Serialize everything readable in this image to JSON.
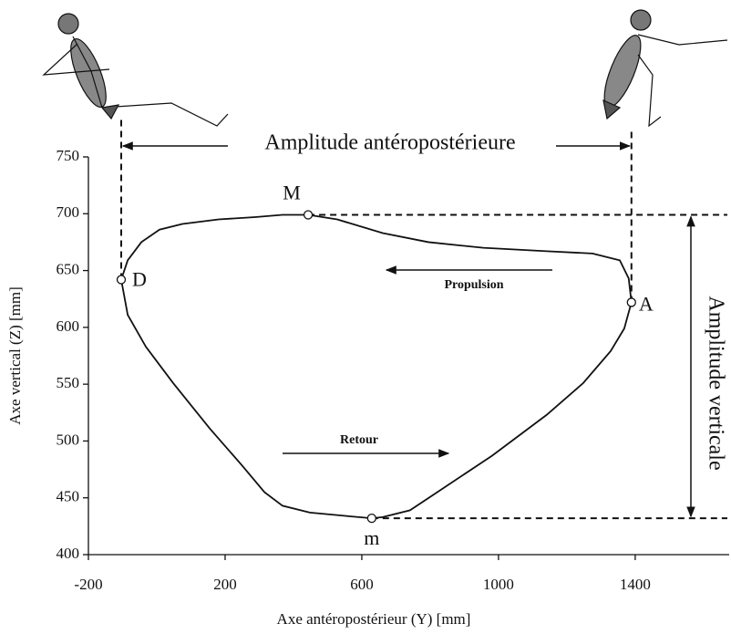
{
  "chart_data": {
    "type": "line",
    "xlabel": "Axe antéropostérieur (Y) [mm]",
    "ylabel": "Axe vertical (Z) [mm]",
    "xlim": [
      -200,
      1675
    ],
    "ylim": [
      400,
      750
    ],
    "xticks": [
      -200,
      200,
      600,
      1000,
      1400
    ],
    "yticks": [
      400,
      450,
      500,
      550,
      600,
      650,
      700,
      750
    ],
    "series": [
      {
        "color": "#111111",
        "x": [
          -104,
          -85,
          -45,
          8,
          75,
          181,
          288,
          368,
          443,
          528,
          661,
          795,
          955,
          1141,
          1275,
          1355,
          1381,
          1389,
          1368,
          1328,
          1248,
          1141,
          981,
          821,
          741,
          661,
          629,
          555,
          448,
          368,
          315,
          248,
          155,
          48,
          -32,
          -85
        ],
        "values": [
          642,
          659,
          675,
          686,
          691,
          695,
          697,
          699,
          699,
          695,
          683,
          675,
          670,
          667,
          665,
          659,
          643,
          622,
          599,
          579,
          551,
          523,
          487,
          455,
          439,
          433,
          432,
          434,
          437,
          443,
          455,
          479,
          511,
          551,
          583,
          611
        ]
      }
    ],
    "points": [
      {
        "label": "D",
        "x": -104,
        "y": 642
      },
      {
        "label": "M",
        "x": 443,
        "y": 699
      },
      {
        "label": "A",
        "x": 1389,
        "y": 622
      },
      {
        "label": "m",
        "x": 629,
        "y": 432
      }
    ],
    "annotations": {
      "horizontal": "Amplitude antéropostérieure",
      "vertical": "Amplitude verticale",
      "propulsion": "Propulsion",
      "retour": "Retour"
    }
  }
}
